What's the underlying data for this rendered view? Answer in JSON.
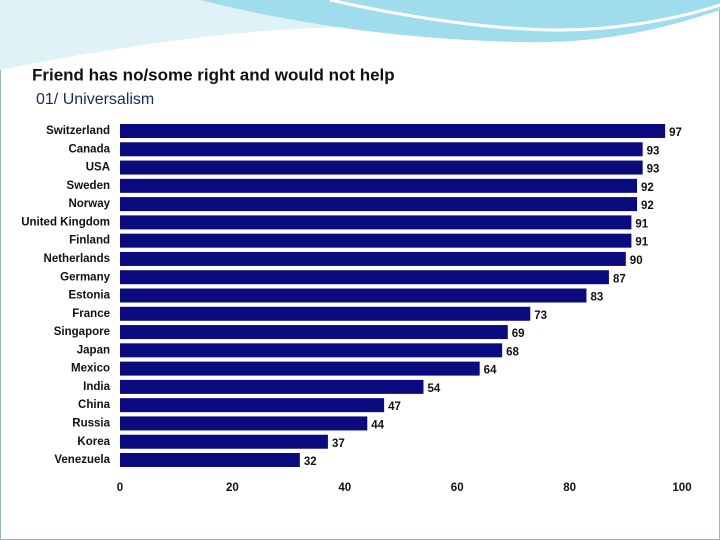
{
  "chart_data": {
    "type": "hbar",
    "title": "Friend has no/some right and would not help",
    "subtitle": "01/ Universalism",
    "categories": [
      "Switzerland",
      "Canada",
      "USA",
      "Sweden",
      "Norway",
      "United Kingdom",
      "Finland",
      "Netherlands",
      "Germany",
      "Estonia",
      "France",
      "Singapore",
      "Japan",
      "Mexico",
      "India",
      "China",
      "Russia",
      "Korea",
      "Venezuela"
    ],
    "values": [
      97,
      93,
      93,
      92,
      92,
      91,
      91,
      90,
      87,
      83,
      73,
      69,
      68,
      64,
      54,
      47,
      44,
      37,
      32
    ],
    "color": "#0b0b80",
    "xlim": [
      0,
      100
    ],
    "xticks": [
      0,
      20,
      40,
      60,
      80,
      100
    ],
    "grid": false
  }
}
